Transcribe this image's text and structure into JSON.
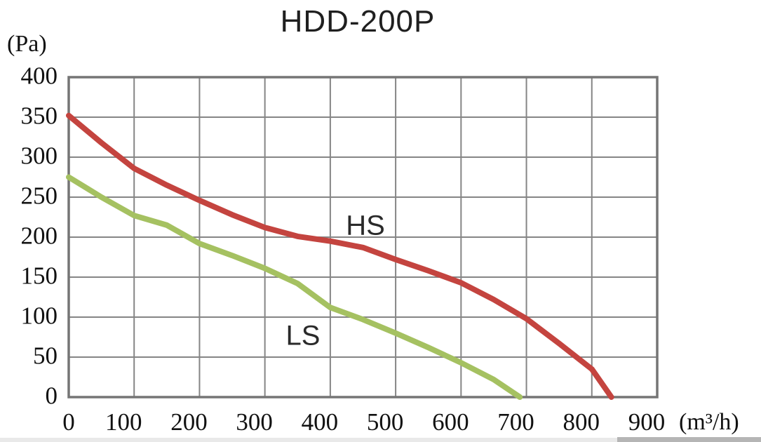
{
  "chart_data": {
    "type": "line",
    "title": "HDD-200P",
    "ylabel": "(Pa)",
    "xlabel": "(m³/h)",
    "xlim": [
      0,
      900
    ],
    "ylim": [
      0,
      400
    ],
    "x_ticks": [
      0,
      100,
      200,
      300,
      400,
      500,
      600,
      700,
      800,
      900
    ],
    "y_ticks": [
      0,
      50,
      100,
      150,
      200,
      250,
      300,
      350,
      400
    ],
    "grid": true,
    "legend_position": "inline-labels",
    "series": [
      {
        "name": "HS",
        "color": "#c4443f",
        "points": [
          [
            0,
            352
          ],
          [
            50,
            318
          ],
          [
            100,
            286
          ],
          [
            150,
            265
          ],
          [
            200,
            246
          ],
          [
            250,
            228
          ],
          [
            300,
            212
          ],
          [
            350,
            201
          ],
          [
            400,
            195
          ],
          [
            450,
            187
          ],
          [
            500,
            172
          ],
          [
            550,
            158
          ],
          [
            600,
            143
          ],
          [
            650,
            122
          ],
          [
            700,
            98
          ],
          [
            750,
            67
          ],
          [
            800,
            35
          ],
          [
            830,
            0
          ]
        ]
      },
      {
        "name": "LS",
        "color": "#a5c161",
        "points": [
          [
            0,
            275
          ],
          [
            50,
            250
          ],
          [
            100,
            227
          ],
          [
            150,
            215
          ],
          [
            200,
            192
          ],
          [
            250,
            177
          ],
          [
            300,
            161
          ],
          [
            350,
            142
          ],
          [
            400,
            112
          ],
          [
            450,
            97
          ],
          [
            500,
            80
          ],
          [
            550,
            62
          ],
          [
            600,
            43
          ],
          [
            650,
            22
          ],
          [
            690,
            0
          ]
        ]
      }
    ]
  },
  "colors": {
    "grid": "#858585",
    "border": "#757575",
    "text": "#111111"
  }
}
